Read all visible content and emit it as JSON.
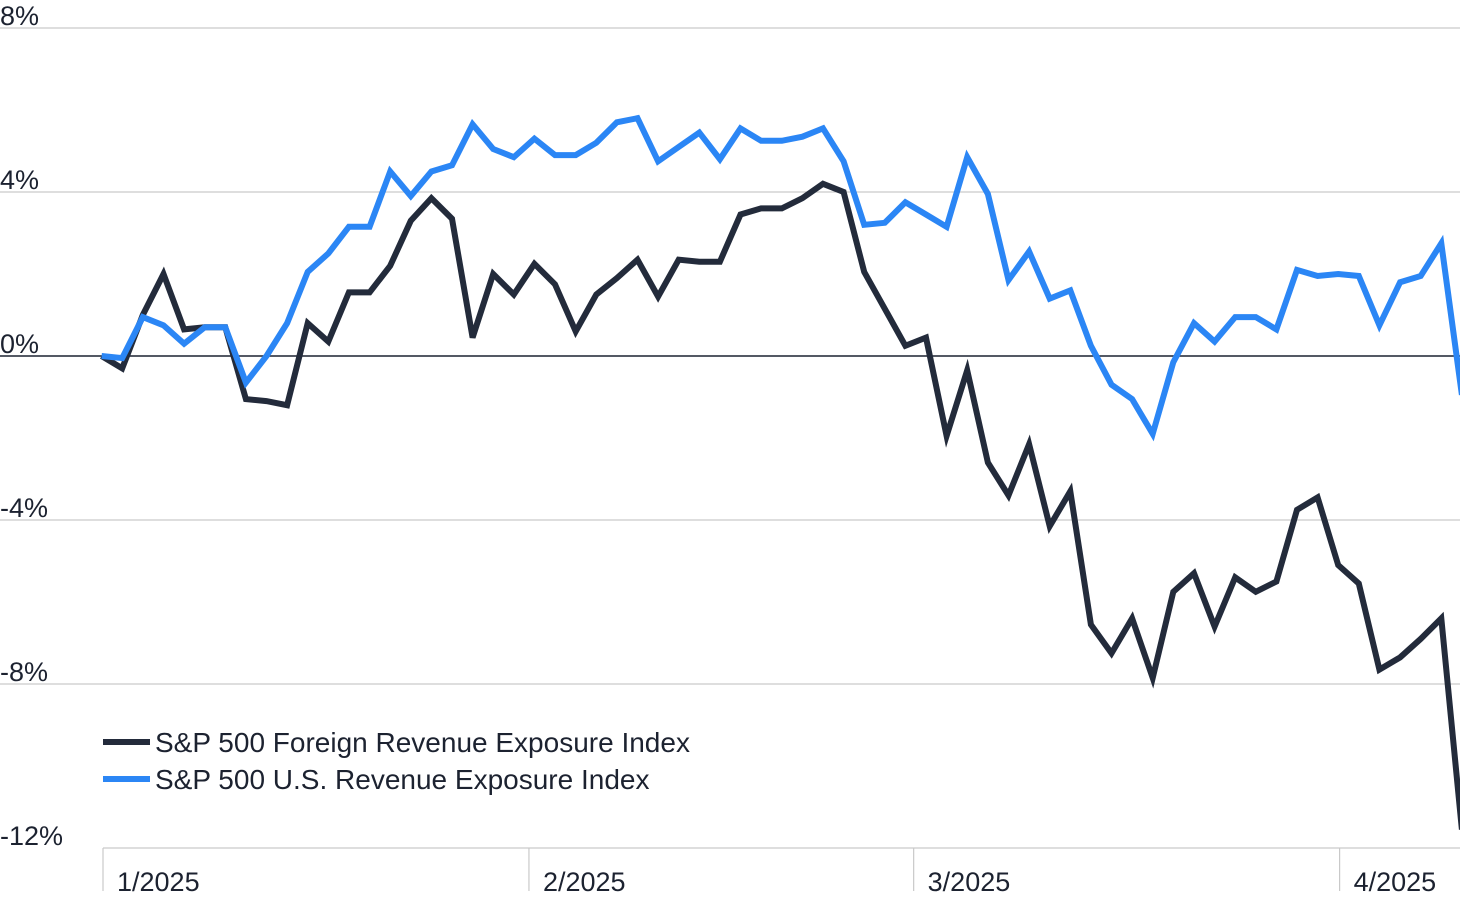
{
  "chart_data": {
    "type": "line",
    "title": "",
    "xlabel": "",
    "ylabel": "",
    "ylim": [
      -12,
      8
    ],
    "y_ticks": [
      "8%",
      "4%",
      "0%",
      "-4%",
      "-8%",
      "-12%"
    ],
    "y_tick_values": [
      8,
      4,
      0,
      -4,
      -8,
      -12
    ],
    "x_ticks": [
      "1/2025",
      "2/2025",
      "3/2025",
      "4/2025"
    ],
    "x_tick_days": [
      0,
      31,
      59,
      90
    ],
    "grid": true,
    "legend_position": "bottom-left",
    "x_days": [
      -0.1,
      1.4,
      2.9,
      4.4,
      5.9,
      7.4,
      8.9,
      10.4,
      11.9,
      13.4,
      14.9,
      16.4,
      17.9,
      19.4,
      20.9,
      22.4,
      23.9,
      25.4,
      26.9,
      28.4,
      29.9,
      31.4,
      32.9,
      34.4,
      35.9,
      37.4,
      38.9,
      40.4,
      41.9,
      43.4,
      44.9,
      46.4,
      47.9,
      49.4,
      50.9,
      52.4,
      53.9,
      55.4,
      56.9,
      58.4,
      59.9,
      61.4,
      62.9,
      64.4,
      65.9,
      67.4,
      68.9,
      70.4,
      71.9,
      73.4,
      74.9,
      76.4,
      77.9,
      79.4,
      80.9,
      82.4,
      83.9,
      85.4,
      86.9,
      88.4,
      89.9,
      91.4,
      92.9,
      94.4,
      95.9,
      97.4,
      98.9
    ],
    "series": [
      {
        "name": "S&P 500 Foreign Revenue Exposure Index",
        "color": "#232b3b",
        "values": [
          0.0,
          -0.3,
          1.0,
          2.0,
          0.65,
          0.7,
          0.7,
          -1.05,
          -1.1,
          -1.2,
          0.8,
          0.35,
          1.55,
          1.55,
          2.2,
          3.3,
          3.85,
          3.35,
          0.45,
          2.0,
          1.5,
          2.25,
          1.75,
          0.6,
          1.5,
          1.9,
          2.35,
          1.45,
          2.35,
          2.3,
          2.3,
          3.45,
          3.6,
          3.6,
          3.85,
          4.2,
          4.0,
          2.05,
          1.15,
          0.25,
          0.45,
          -1.95,
          -0.35,
          -2.6,
          -3.4,
          -2.15,
          -4.15,
          -3.3,
          -6.55,
          -7.25,
          -6.4,
          -7.85,
          -5.75,
          -5.3,
          -6.6,
          -5.4,
          -5.75,
          -5.5,
          -3.75,
          -3.45,
          -5.1,
          -5.55,
          -7.65,
          -7.35,
          -6.9,
          -6.4,
          -11.55
        ]
      },
      {
        "name": "S&P 500 U.S. Revenue Exposure Index",
        "color": "#2b86f5",
        "values": [
          0.0,
          -0.05,
          0.95,
          0.75,
          0.3,
          0.7,
          0.7,
          -0.65,
          0.0,
          0.8,
          2.05,
          2.5,
          3.15,
          3.15,
          4.5,
          3.9,
          4.5,
          4.65,
          5.65,
          5.05,
          4.85,
          5.3,
          4.9,
          4.9,
          5.2,
          5.7,
          5.8,
          4.75,
          5.1,
          5.45,
          4.8,
          5.55,
          5.25,
          5.25,
          5.35,
          5.55,
          4.75,
          3.2,
          3.25,
          3.75,
          3.45,
          3.15,
          4.85,
          3.95,
          1.85,
          2.55,
          1.4,
          1.6,
          0.25,
          -0.7,
          -1.05,
          -1.9,
          -0.15,
          0.8,
          0.35,
          0.95,
          0.95,
          0.65,
          2.1,
          1.95,
          2.0,
          1.95,
          0.75,
          1.8,
          1.95,
          2.75,
          -0.95
        ]
      }
    ]
  }
}
